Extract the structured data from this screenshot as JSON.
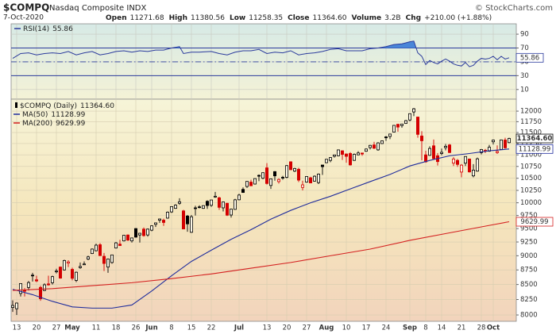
{
  "header": {
    "symbol": "$COMPQ",
    "name": "Nasdaq Composite INDX",
    "source": "© StockCharts.com",
    "date": "7-Oct-2020",
    "quote": [
      {
        "label": "Open",
        "value": "11271.68"
      },
      {
        "label": "High",
        "value": "11380.56"
      },
      {
        "label": "Low",
        "value": "11258.35"
      },
      {
        "label": "Close",
        "value": "11364.60"
      },
      {
        "label": "Volume",
        "value": "3.2B"
      },
      {
        "label": "Chg",
        "value": "+210.00 (+1.88%)"
      }
    ]
  },
  "chart_data": [
    {
      "type": "line",
      "ylim": [
        -4,
        105
      ],
      "yticks": [
        10,
        30,
        50,
        70,
        90
      ],
      "grid": true,
      "levels": [
        {
          "value": 70,
          "style": "solid"
        },
        {
          "value": 50,
          "style": "dashdot"
        },
        {
          "value": 30,
          "style": "solid"
        }
      ],
      "fill_above": 70,
      "fill_color": "#4a86d8",
      "series": [
        {
          "name": "RSI(14)",
          "color": "#2a3a9c",
          "x": [
            0,
            2,
            4,
            6,
            8,
            10,
            12,
            14,
            16,
            18,
            20,
            22,
            24,
            26,
            28,
            30,
            32,
            34,
            36,
            38,
            40,
            42,
            43,
            45,
            47,
            50,
            52,
            54,
            56,
            58,
            60,
            62,
            64,
            66,
            68,
            70,
            72,
            74,
            76,
            78,
            80,
            82,
            84,
            86,
            88,
            90,
            92,
            94,
            96,
            98,
            100,
            101,
            102,
            103,
            104,
            105,
            106,
            107,
            108,
            109,
            110,
            111,
            112,
            113,
            114,
            115,
            116,
            117,
            118,
            119,
            120,
            121,
            122,
            123,
            124,
            125
          ],
          "values": [
            55,
            62,
            63,
            60,
            62,
            63,
            62,
            65,
            60,
            63,
            65,
            60,
            62,
            65,
            66,
            64,
            66,
            65,
            67,
            67,
            70,
            72,
            62,
            64,
            64,
            65,
            62,
            60,
            64,
            66,
            66,
            68,
            62,
            64,
            63,
            66,
            60,
            62,
            63,
            65,
            68,
            69,
            66,
            66,
            66,
            69,
            70,
            72,
            75,
            76,
            79,
            80,
            63,
            58,
            46,
            52,
            49,
            47,
            51,
            54,
            51,
            47,
            45,
            44,
            49,
            43,
            45,
            51,
            55,
            54,
            55,
            58,
            53,
            58,
            54,
            55.86
          ]
        }
      ]
    },
    {
      "type": "candlestick",
      "name": "$COMPQ (Daily)",
      "close_label": "11364.60",
      "up_color": "#000000",
      "down_color": "#d40000",
      "ylim": [
        7900,
        12250
      ],
      "log_scale": true,
      "grid": true,
      "yticks": [
        8000,
        8250,
        8500,
        8750,
        9000,
        9250,
        9500,
        9750,
        10000,
        10250,
        10500,
        10750,
        11000,
        11250,
        11500,
        11750,
        12000
      ],
      "categories": [
        null,
        "13",
        null,
        null,
        null,
        null,
        "20",
        null,
        null,
        null,
        null,
        "27",
        null,
        null,
        null,
        "May",
        null,
        null,
        null,
        null,
        null,
        "11",
        null,
        null,
        null,
        null,
        "18",
        null,
        null,
        null,
        null,
        "26",
        null,
        null,
        null,
        "Jun",
        null,
        null,
        null,
        null,
        "8",
        null,
        null,
        null,
        null,
        "15",
        null,
        null,
        null,
        null,
        "22",
        null,
        null,
        null,
        null,
        null,
        null,
        "Jul",
        null,
        null,
        null,
        null,
        null,
        null,
        "13",
        null,
        null,
        null,
        null,
        "20",
        null,
        null,
        null,
        null,
        "27",
        null,
        null,
        null,
        null,
        "Aug",
        null,
        null,
        null,
        null,
        "10",
        null,
        null,
        null,
        null,
        "17",
        null,
        null,
        null,
        null,
        "24",
        null,
        null,
        null,
        null,
        null,
        "Sep",
        null,
        null,
        null,
        "8",
        null,
        null,
        null,
        "14",
        null,
        null,
        null,
        null,
        "21",
        null,
        null,
        null,
        null,
        "28",
        null,
        null,
        "Oct",
        null,
        null,
        null,
        null
      ],
      "open": [
        8120,
        8100,
        8350,
        8400,
        8450,
        8660,
        8580,
        8450,
        8400,
        8510,
        8530,
        8730,
        8800,
        8750,
        8870,
        8760,
        8570,
        8790,
        8850,
        8940,
        9040,
        9090,
        9200,
        8990,
        8800,
        8880,
        9140,
        9210,
        9270,
        9380,
        9270,
        9500,
        9380,
        9490,
        9380,
        9470,
        9580,
        9660,
        9660,
        9700,
        9820,
        9890,
        9990,
        9840,
        9740,
        9430,
        9900,
        9920,
        9890,
        10030,
        9950,
        10130,
        10100,
        9900,
        9990,
        9760,
        9870,
        10060,
        10270,
        10330,
        10420,
        10380,
        10560,
        10500,
        10720,
        10350,
        10640,
        10430,
        10520,
        10520,
        10850,
        10650,
        10690,
        10310,
        10420,
        10510,
        10440,
        10410,
        10780,
        10830,
        10880,
        10970,
        10980,
        11090,
        11020,
        11030,
        10880,
        11000,
        11040,
        11080,
        11160,
        11220,
        11110,
        11250,
        11400,
        11410,
        11510,
        11690,
        11660,
        11710,
        11790,
        11980,
        11860,
        11420,
        11000,
        10990,
        11200,
        10980,
        11030,
        11160,
        11220,
        10820,
        10880,
        10630,
        10820,
        10910,
        10550,
        10650,
        11050,
        11100,
        11080,
        11290,
        11050,
        11120,
        11330,
        11271.68
      ],
      "high": [
        8236,
        8200,
        8520,
        8440,
        8560,
        8700,
        8650,
        8480,
        8520,
        8650,
        8650,
        8770,
        8810,
        8930,
        8920,
        8790,
        8720,
        8880,
        8900,
        9000,
        9130,
        9220,
        9230,
        9050,
        8950,
        9020,
        9250,
        9290,
        9380,
        9390,
        9330,
        9510,
        9420,
        9520,
        9500,
        9560,
        9610,
        9690,
        9690,
        9830,
        9930,
        9970,
        10090,
        9860,
        9760,
        9760,
        9940,
        9950,
        9950,
        10050,
        10060,
        10220,
        10120,
        10020,
        10000,
        9880,
        10080,
        10180,
        10310,
        10440,
        10470,
        10500,
        10580,
        10620,
        10820,
        10490,
        10650,
        10500,
        10550,
        10780,
        10860,
        10720,
        10720,
        10450,
        10540,
        10530,
        10560,
        10600,
        10780,
        10910,
        10950,
        11000,
        11120,
        11100,
        11030,
        11060,
        11030,
        11080,
        11050,
        11140,
        11220,
        11290,
        11280,
        11320,
        11420,
        11470,
        11670,
        11700,
        11700,
        11790,
        11945,
        12074,
        11860,
        11530,
        11090,
        11190,
        11340,
        11040,
        11140,
        11240,
        11240,
        10950,
        10910,
        10800,
        10970,
        10920,
        10800,
        10940,
        11130,
        11130,
        11220,
        11340,
        11210,
        11340,
        11380,
        11380.56
      ],
      "low": [
        8050,
        8000,
        8300,
        8300,
        8400,
        8550,
        8540,
        8230,
        8390,
        8480,
        8500,
        8690,
        8600,
        8740,
        8800,
        8570,
        8540,
        8770,
        8840,
        8920,
        9030,
        9080,
        9000,
        8730,
        8700,
        8860,
        9130,
        9180,
        9260,
        9270,
        9240,
        9330,
        9240,
        9350,
        9350,
        9450,
        9530,
        9610,
        9550,
        9690,
        9800,
        9880,
        9960,
        9490,
        9440,
        9420,
        9750,
        9890,
        9880,
        9880,
        9920,
        10100,
        9860,
        9830,
        9740,
        9710,
        9860,
        10050,
        10200,
        10300,
        10340,
        10370,
        10440,
        10480,
        10370,
        10280,
        10450,
        10390,
        10470,
        10500,
        10670,
        10630,
        10420,
        10250,
        10410,
        10400,
        10430,
        10380,
        10570,
        10820,
        10840,
        10940,
        10970,
        10890,
        10830,
        10770,
        10870,
        10990,
        10980,
        11070,
        11120,
        11130,
        11090,
        11240,
        11310,
        11350,
        11500,
        11520,
        11610,
        11700,
        11760,
        11880,
        11380,
        10880,
        10830,
        10980,
        10910,
        10770,
        10990,
        11100,
        11040,
        10760,
        10740,
        10520,
        10760,
        10620,
        10520,
        10640,
        11010,
        11040,
        11070,
        11230,
        11020,
        11110,
        11140,
        11258.35
      ],
      "close": [
        8153,
        8192,
        8516,
        8393,
        8532,
        8650,
        8560,
        8263,
        8495,
        8494,
        8634,
        8730,
        8608,
        8915,
        8890,
        8605,
        8710,
        8810,
        8854,
        8980,
        9121,
        9192,
        9002,
        8863,
        8943,
        9015,
        9234,
        9185,
        9375,
        9284,
        9325,
        9340,
        9412,
        9368,
        9490,
        9552,
        9608,
        9683,
        9616,
        9815,
        9925,
        9953,
        10020,
        9493,
        9589,
        9726,
        9896,
        9911,
        9943,
        9946,
        10056,
        10131,
        9910,
        10017,
        9757,
        9875,
        10059,
        10155,
        10208,
        10434,
        10344,
        10493,
        10548,
        10617,
        10391,
        10488,
        10550,
        10474,
        10503,
        10767,
        10680,
        10706,
        10461,
        10363,
        10537,
        10403,
        10543,
        10588,
        10745,
        10903,
        10941,
        10999,
        11109,
        11011,
        10968,
        10782,
        11012,
        11042,
        11019,
        11129,
        11210,
        11146,
        11265,
        11312,
        11380,
        11466,
        11665,
        11625,
        11696,
        11775,
        11939,
        12056,
        11458,
        11313,
        10848,
        11141,
        10919,
        10854,
        11056,
        11190,
        11051,
        10910,
        10793,
        10778,
        10964,
        10633,
        10672,
        10914,
        11118,
        11086,
        11168,
        11327,
        11076,
        11332,
        11155,
        11364.6
      ],
      "series": [
        {
          "name": "MA(50)",
          "color": "#1f2c9c",
          "x": [
            0,
            5,
            10,
            15,
            20,
            25,
            30,
            35,
            40,
            45,
            50,
            55,
            60,
            65,
            70,
            75,
            80,
            85,
            90,
            95,
            100,
            105,
            110,
            115,
            120,
            125
          ],
          "values": [
            8420,
            8330,
            8220,
            8130,
            8110,
            8110,
            8160,
            8390,
            8650,
            8900,
            9100,
            9300,
            9480,
            9680,
            9850,
            10000,
            10130,
            10280,
            10430,
            10580,
            10760,
            10880,
            10980,
            11030,
            11090,
            11128.99
          ]
        },
        {
          "name": "MA(200)",
          "color": "#d42020",
          "x": [
            0,
            10,
            20,
            30,
            40,
            50,
            60,
            70,
            80,
            90,
            100,
            110,
            120,
            125
          ],
          "values": [
            8400,
            8430,
            8480,
            8530,
            8600,
            8680,
            8780,
            8880,
            9000,
            9120,
            9280,
            9420,
            9560,
            9629.99
          ]
        }
      ]
    }
  ]
}
